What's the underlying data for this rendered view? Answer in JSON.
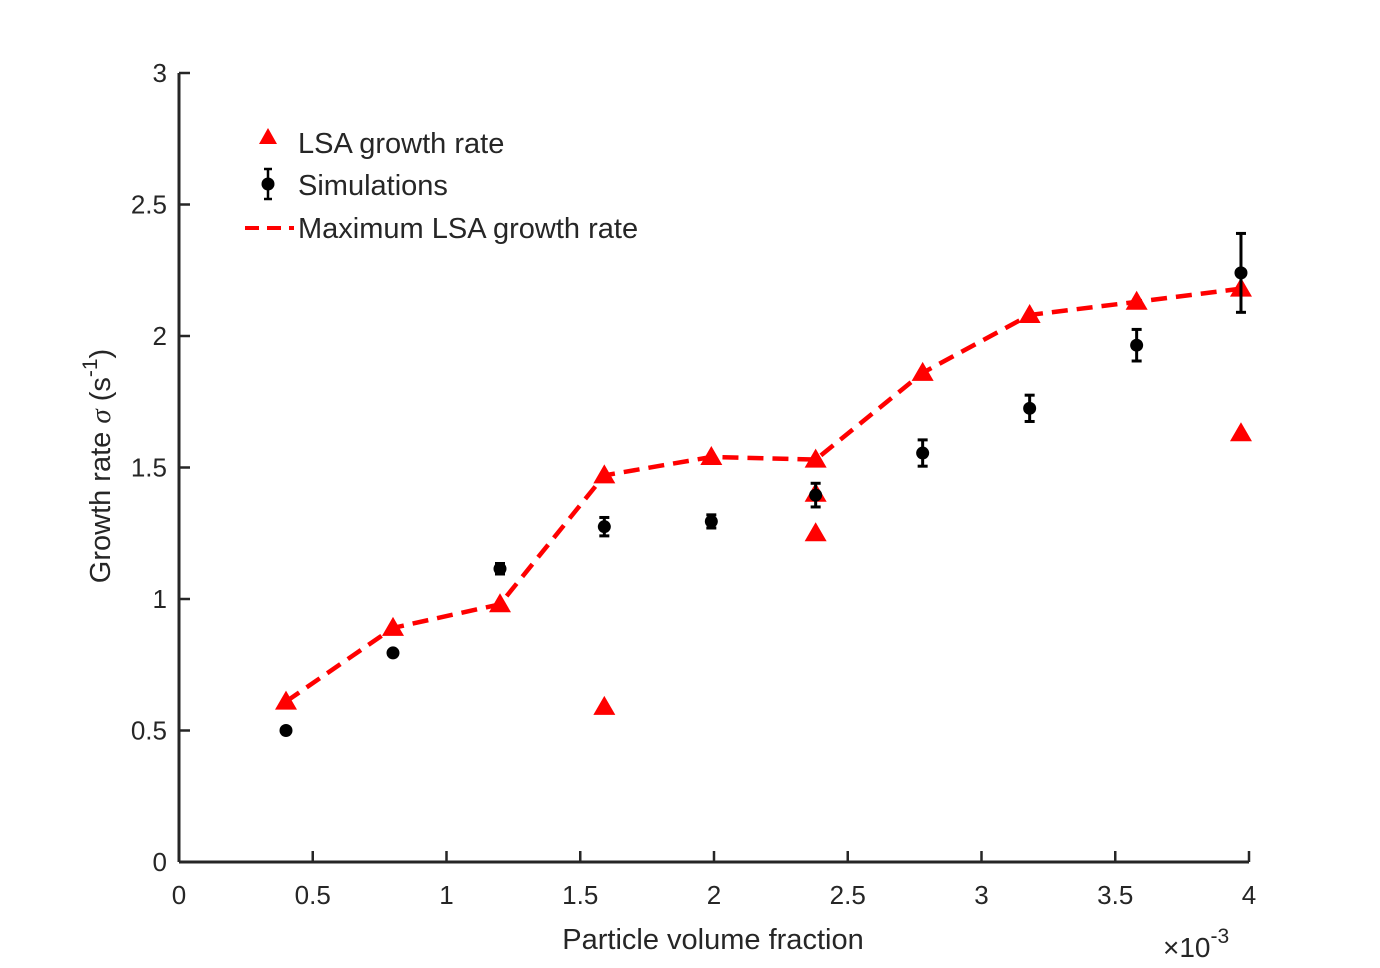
{
  "chart_data": {
    "type": "scatter",
    "title": "",
    "xlabel": "Particle volume fraction",
    "x_multiplier": "×10-3",
    "x_multiplier_parts": {
      "base": "×10",
      "exp": "-3"
    },
    "ylabel_parts": {
      "pre": "Growth rate ",
      "sigma": "σ",
      "mid": " (s",
      "exp": "-1",
      "post": ")"
    },
    "ylabel": "Growth rate σ (s-1)",
    "xlim": [
      0,
      4
    ],
    "ylim": [
      0,
      3
    ],
    "xticks": [
      0,
      0.5,
      1,
      1.5,
      2,
      2.5,
      3,
      3.5,
      4
    ],
    "xtick_labels": [
      "0",
      "0.5",
      "1",
      "1.5",
      "2",
      "2.5",
      "3",
      "3.5",
      "4"
    ],
    "yticks": [
      0,
      0.5,
      1,
      1.5,
      2,
      2.5,
      3
    ],
    "ytick_labels": [
      "0",
      "0.5",
      "1",
      "1.5",
      "2",
      "2.5",
      "3"
    ],
    "grid": false,
    "legend_position": "top-left",
    "series": [
      {
        "name": "LSA growth rate",
        "kind": "scatter",
        "marker": "triangle",
        "color": "#ff0000",
        "points": [
          {
            "x": 0.4,
            "y": 0.61
          },
          {
            "x": 0.8,
            "y": 0.89
          },
          {
            "x": 1.2,
            "y": 0.98
          },
          {
            "x": 1.59,
            "y": 0.59
          },
          {
            "x": 1.59,
            "y": 1.47
          },
          {
            "x": 1.99,
            "y": 1.54
          },
          {
            "x": 2.38,
            "y": 1.25
          },
          {
            "x": 2.38,
            "y": 1.4
          },
          {
            "x": 2.38,
            "y": 1.53
          },
          {
            "x": 2.78,
            "y": 1.86
          },
          {
            "x": 3.18,
            "y": 2.08
          },
          {
            "x": 3.58,
            "y": 2.13
          },
          {
            "x": 3.97,
            "y": 1.63
          },
          {
            "x": 3.97,
            "y": 2.18
          }
        ]
      },
      {
        "name": "Simulations",
        "kind": "errorbar",
        "marker": "circle",
        "color": "#000000",
        "points": [
          {
            "x": 0.4,
            "y": 0.5,
            "err": 0.0
          },
          {
            "x": 0.8,
            "y": 0.795,
            "err": 0.0
          },
          {
            "x": 1.2,
            "y": 1.115,
            "err": 0.02
          },
          {
            "x": 1.59,
            "y": 1.275,
            "err": 0.035
          },
          {
            "x": 1.99,
            "y": 1.295,
            "err": 0.025
          },
          {
            "x": 2.38,
            "y": 1.395,
            "err": 0.045
          },
          {
            "x": 2.78,
            "y": 1.555,
            "err": 0.05
          },
          {
            "x": 3.18,
            "y": 1.725,
            "err": 0.05
          },
          {
            "x": 3.58,
            "y": 1.965,
            "err": 0.06
          },
          {
            "x": 3.97,
            "y": 2.24,
            "err": 0.15
          }
        ]
      },
      {
        "name": "Maximum LSA growth rate",
        "kind": "line",
        "style": "dashed",
        "color": "#ff0000",
        "x": [
          0.4,
          0.8,
          1.2,
          1.59,
          1.99,
          2.38,
          2.78,
          3.18,
          3.58,
          3.97
        ],
        "y": [
          0.61,
          0.89,
          0.98,
          1.47,
          1.54,
          1.53,
          1.86,
          2.08,
          2.13,
          2.18
        ]
      }
    ]
  }
}
